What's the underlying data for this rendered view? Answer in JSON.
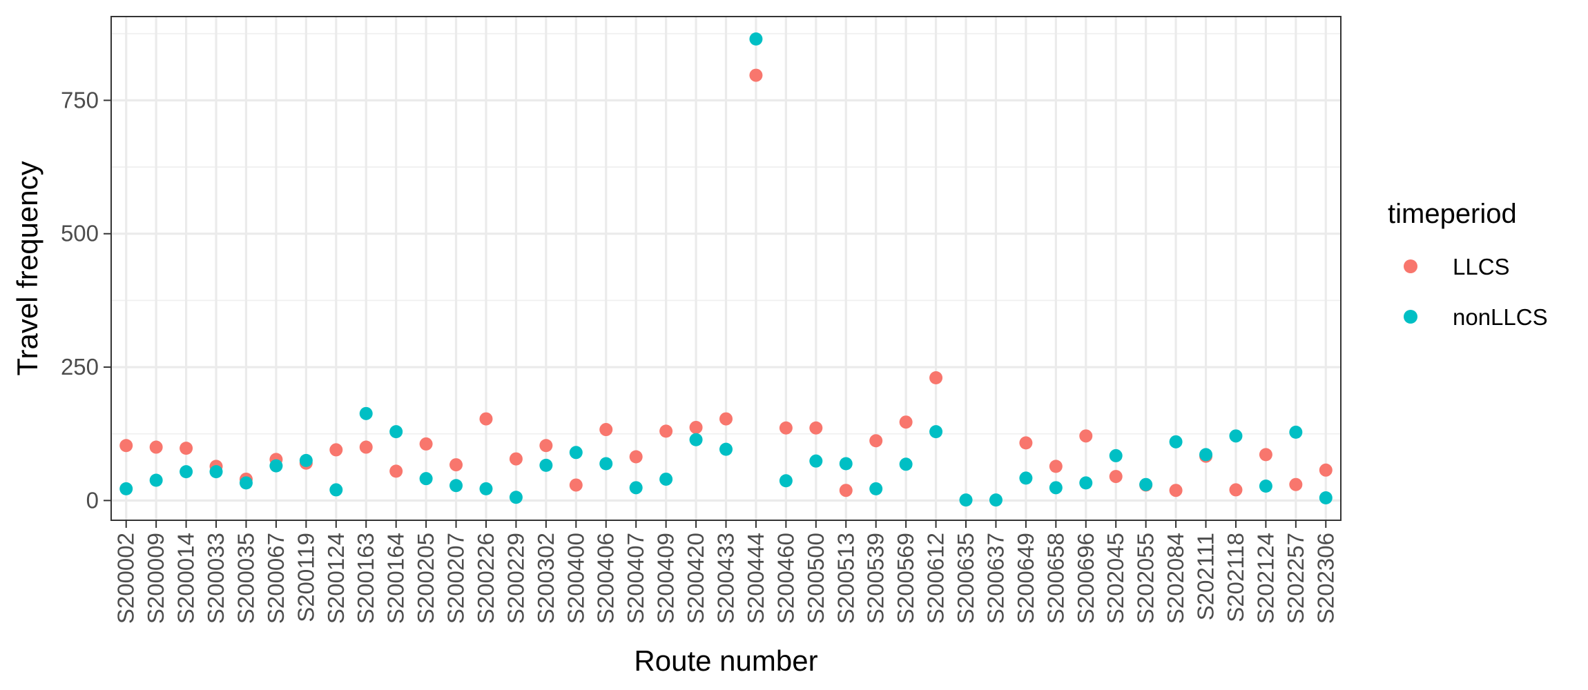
{
  "chart_data": {
    "type": "scatter",
    "title": "",
    "xlabel": "Route number",
    "ylabel": "Travel frequency",
    "ylim": [
      -37,
      907
    ],
    "yticks": [
      0,
      250,
      500,
      750
    ],
    "grid": true,
    "legend": {
      "title": "timeperiod",
      "placement": "right"
    },
    "categories": [
      "S200002",
      "S200009",
      "S200014",
      "S200033",
      "S200035",
      "S200067",
      "S200119",
      "S200124",
      "S200163",
      "S200164",
      "S200205",
      "S200207",
      "S200226",
      "S200229",
      "S200302",
      "S200400",
      "S200406",
      "S200407",
      "S200409",
      "S200420",
      "S200433",
      "S200444",
      "S200460",
      "S200500",
      "S200513",
      "S200539",
      "S200569",
      "S200612",
      "S200635",
      "S200637",
      "S200649",
      "S200658",
      "S200696",
      "S202045",
      "S202055",
      "S202084",
      "S202111",
      "S202118",
      "S202124",
      "S202257",
      "S202306"
    ],
    "series": [
      {
        "name": "LLCS",
        "color": "#F8766D",
        "values": [
          103,
          100,
          98,
          64,
          40,
          77,
          70,
          95,
          100,
          55,
          106,
          67,
          153,
          78,
          103,
          29,
          133,
          82,
          130,
          137,
          153,
          797,
          136,
          136,
          19,
          112,
          147,
          230,
          null,
          null,
          108,
          64,
          121,
          45,
          29,
          19,
          83,
          20,
          86,
          30,
          57
        ]
      },
      {
        "name": "nonLLCS",
        "color": "#00BFC4",
        "values": [
          22,
          38,
          54,
          54,
          33,
          65,
          75,
          20,
          163,
          129,
          41,
          28,
          22,
          6,
          66,
          90,
          69,
          24,
          40,
          114,
          96,
          865,
          37,
          74,
          69,
          22,
          68,
          129,
          1,
          1,
          42,
          24,
          33,
          84,
          30,
          110,
          86,
          121,
          27,
          128,
          5
        ]
      }
    ]
  }
}
